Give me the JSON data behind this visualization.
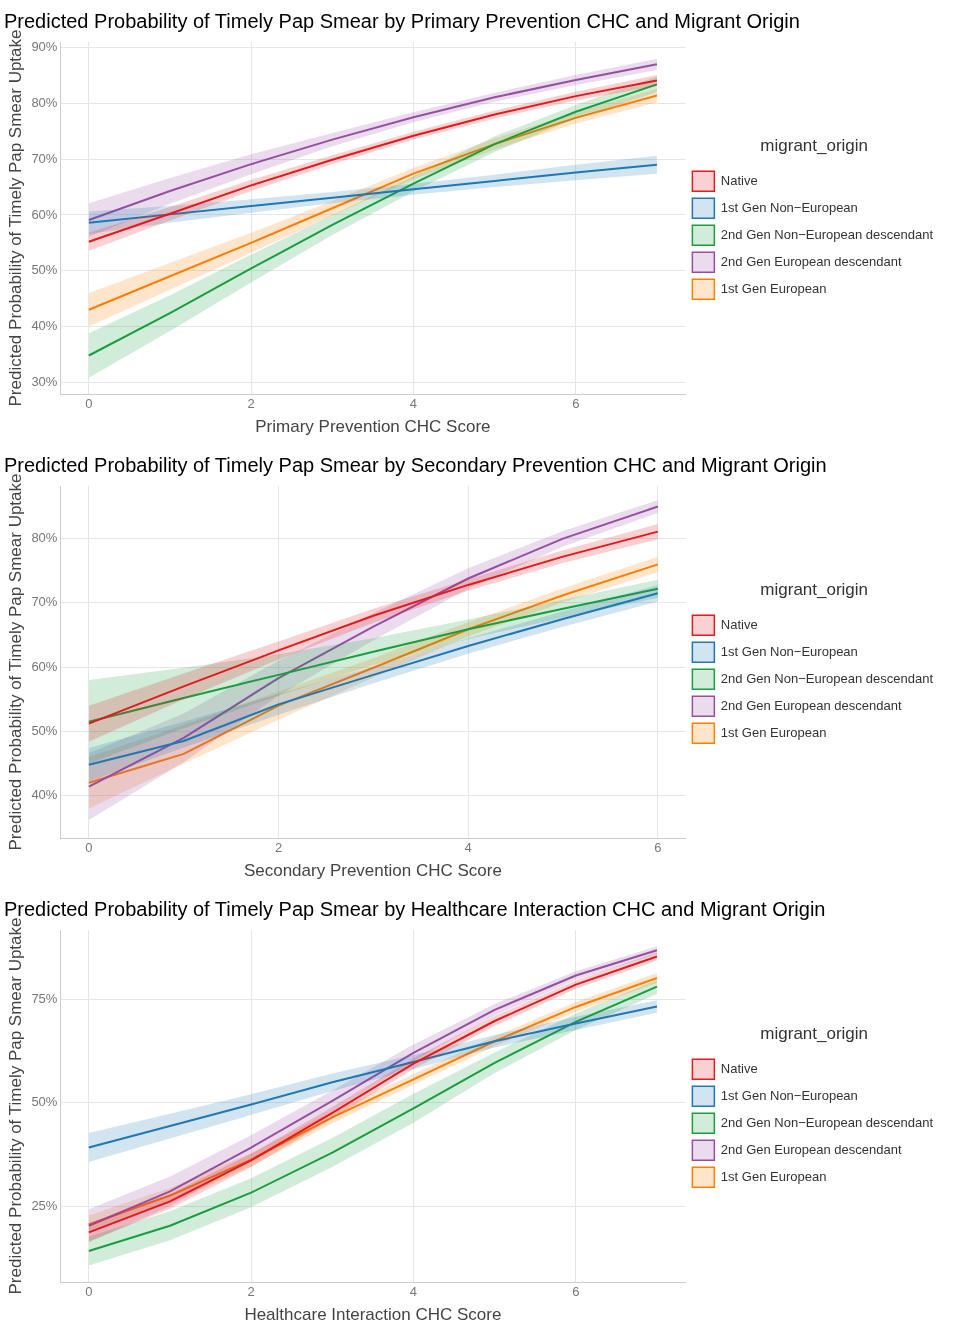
{
  "chart_data": [
    {
      "type": "line",
      "title": "Predicted Probability of Timely Pap Smear by Primary Prevention CHC and Migrant Origin",
      "xlabel": "Primary Prevention CHC Score",
      "ylabel": "Predicted Probability of Timely Pap Smear Uptake",
      "legend_title": "migrant_origin",
      "legend": "right",
      "grid": true,
      "x": [
        0,
        1,
        2,
        3,
        4,
        5,
        6,
        7
      ],
      "xlim": [
        -0.35,
        7.35
      ],
      "xticks": [
        0,
        2,
        4,
        6
      ],
      "ylim": [
        27.9,
        91
      ],
      "yticks": [
        {
          "value": 30,
          "label": "30%"
        },
        {
          "value": 40,
          "label": "40%"
        },
        {
          "value": 50,
          "label": "50%"
        },
        {
          "value": 60,
          "label": "60%"
        },
        {
          "value": 70,
          "label": "70%"
        },
        {
          "value": 80,
          "label": "80%"
        },
        {
          "value": 90,
          "label": "90%"
        }
      ],
      "series": [
        {
          "name": "Native",
          "color": "#e41a1c",
          "values": [
            55.2,
            60.2,
            65.3,
            69.9,
            74.2,
            78.0,
            81.3,
            84.1
          ],
          "lower": [
            53.6,
            59.0,
            64.3,
            69.1,
            73.5,
            77.3,
            80.5,
            83.1
          ],
          "upper": [
            56.8,
            61.4,
            66.3,
            70.7,
            74.9,
            78.7,
            82.1,
            85.1
          ]
        },
        {
          "name": "1st Gen Non−European",
          "color": "#1f78b4",
          "values": [
            58.6,
            60.1,
            61.6,
            63.1,
            64.6,
            66.1,
            67.6,
            69.0
          ],
          "lower": [
            56.6,
            58.6,
            60.4,
            62.1,
            63.6,
            65.0,
            66.2,
            67.4
          ],
          "upper": [
            60.6,
            61.6,
            62.8,
            64.1,
            65.6,
            67.2,
            69.0,
            70.6
          ]
        },
        {
          "name": "2nd Gen Non−European descendant",
          "color": "#1a9e3f",
          "values": [
            34.8,
            42.4,
            50.4,
            58.2,
            65.6,
            72.7,
            78.5,
            83.4
          ],
          "lower": [
            30.8,
            39.2,
            47.9,
            56.4,
            64.2,
            71.3,
            77.3,
            82.0
          ],
          "upper": [
            38.8,
            45.6,
            52.9,
            60.0,
            67.0,
            74.1,
            79.7,
            84.8
          ]
        },
        {
          "name": "2nd Gen European descendant",
          "color": "#984ea3",
          "values": [
            59.1,
            64.3,
            69.1,
            73.5,
            77.5,
            81.1,
            84.2,
            87.0
          ],
          "lower": [
            56.1,
            62.0,
            67.3,
            72.3,
            76.6,
            80.3,
            83.3,
            86.0
          ],
          "upper": [
            62.1,
            66.6,
            70.9,
            74.7,
            78.4,
            81.9,
            85.1,
            88.0
          ]
        },
        {
          "name": "1st Gen European",
          "color": "#ff7f00",
          "values": [
            43.0,
            49.0,
            55.0,
            61.2,
            67.4,
            72.7,
            77.4,
            81.4
          ],
          "lower": [
            40.0,
            46.6,
            53.2,
            59.9,
            66.4,
            71.7,
            76.4,
            80.2
          ],
          "upper": [
            46.0,
            51.4,
            56.8,
            62.5,
            68.4,
            73.7,
            78.4,
            82.6
          ]
        }
      ]
    },
    {
      "type": "line",
      "title": "Predicted Probability of Timely Pap Smear by Secondary Prevention CHC and Migrant Origin",
      "xlabel": "Secondary Prevention CHC Score",
      "ylabel": "Predicted Probability of Timely Pap Smear Uptake",
      "legend_title": "migrant_origin",
      "legend": "right",
      "grid": true,
      "x": [
        0,
        1,
        2,
        3,
        4,
        5,
        6
      ],
      "xlim": [
        -0.3,
        6.29
      ],
      "xticks": [
        0,
        2,
        4,
        6
      ],
      "ylim": [
        33.4,
        88.2
      ],
      "yticks": [
        {
          "value": 40,
          "label": "40%"
        },
        {
          "value": 50,
          "label": "50%"
        },
        {
          "value": 60,
          "label": "60%"
        },
        {
          "value": 70,
          "label": "70%"
        },
        {
          "value": 80,
          "label": "80%"
        }
      ],
      "series": [
        {
          "name": "Native",
          "color": "#e41a1c",
          "values": [
            51.2,
            57.0,
            62.6,
            68.0,
            72.8,
            77.2,
            81.1
          ],
          "lower": [
            48.4,
            55.0,
            61.2,
            66.9,
            71.9,
            76.2,
            79.9
          ],
          "upper": [
            54.0,
            59.0,
            64.0,
            69.1,
            73.7,
            78.2,
            82.3
          ]
        },
        {
          "name": "1st Gen Non−European",
          "color": "#1f78b4",
          "values": [
            44.8,
            48.5,
            54.2,
            58.8,
            63.3,
            67.5,
            71.5
          ],
          "lower": [
            42.2,
            47.5,
            52.6,
            57.5,
            62.1,
            66.3,
            70.2
          ],
          "upper": [
            47.4,
            51.5,
            55.8,
            60.1,
            64.5,
            68.7,
            72.8
          ]
        },
        {
          "name": "2nd Gen Non−European descendant",
          "color": "#1a9e3f",
          "values": [
            51.5,
            55.2,
            58.8,
            62.4,
            65.9,
            69.1,
            72.2
          ],
          "lower": [
            45.0,
            50.5,
            55.6,
            60.3,
            64.4,
            67.7,
            70.8
          ],
          "upper": [
            58.0,
            59.9,
            62.0,
            64.5,
            67.4,
            70.5,
            73.6
          ]
        },
        {
          "name": "2nd Gen European descendant",
          "color": "#984ea3",
          "values": [
            41.4,
            49.0,
            58.3,
            66.3,
            73.8,
            80.0,
            85.0
          ],
          "lower": [
            36.2,
            45.2,
            55.6,
            64.2,
            72.2,
            78.8,
            84.0
          ],
          "upper": [
            46.6,
            52.8,
            61.0,
            68.4,
            75.4,
            81.2,
            86.0
          ]
        },
        {
          "name": "1st Gen European",
          "color": "#ff7f00",
          "values": [
            42.0,
            46.5,
            54.0,
            59.9,
            65.9,
            71.2,
            76.0
          ],
          "lower": [
            38.0,
            45.0,
            51.8,
            58.4,
            64.8,
            70.1,
            74.8
          ],
          "upper": [
            46.0,
            51.0,
            56.2,
            61.4,
            67.0,
            72.3,
            77.2
          ]
        }
      ]
    },
    {
      "type": "line",
      "title": "Predicted Probability of Timely Pap Smear by Healthcare Interaction CHC and Migrant Origin",
      "xlabel": "Healthcare Interaction CHC Score",
      "ylabel": "Predicted Probability of Timely Pap Smear Uptake",
      "legend_title": "migrant_origin",
      "legend": "right",
      "grid": true,
      "x": [
        0,
        1,
        2,
        3,
        4,
        5,
        6,
        7
      ],
      "xlim": [
        -0.35,
        7.35
      ],
      "xticks": [
        0,
        2,
        4,
        6
      ],
      "ylim": [
        6.7,
        91.8
      ],
      "yticks": [
        {
          "value": 25,
          "label": "25%"
        },
        {
          "value": 50,
          "label": "50%"
        },
        {
          "value": 75,
          "label": "75%"
        }
      ],
      "series": [
        {
          "name": "Native",
          "color": "#e41a1c",
          "values": [
            18.7,
            26.2,
            36.1,
            47.6,
            59.5,
            69.8,
            78.6,
            85.4
          ],
          "lower": [
            16.5,
            24.4,
            34.5,
            46.2,
            58.2,
            68.6,
            77.6,
            84.4
          ],
          "upper": [
            20.9,
            28.0,
            37.7,
            49.0,
            60.8,
            71.0,
            79.6,
            86.4
          ]
        },
        {
          "name": "1st Gen Non−European",
          "color": "#1f78b4",
          "values": [
            39.2,
            44.4,
            49.6,
            55.0,
            59.9,
            64.9,
            69.2,
            73.3
          ],
          "lower": [
            35.7,
            41.4,
            47.1,
            52.9,
            58.2,
            63.4,
            67.6,
            71.8
          ],
          "upper": [
            42.7,
            47.4,
            52.1,
            57.1,
            61.6,
            66.4,
            70.8,
            74.8
          ]
        },
        {
          "name": "2nd Gen Non−European descendant",
          "color": "#1a9e3f",
          "values": [
            14.2,
            20.3,
            28.3,
            38.0,
            48.7,
            59.7,
            69.6,
            78.1
          ],
          "lower": [
            10.7,
            16.8,
            24.8,
            34.5,
            45.2,
            57.2,
            67.6,
            76.4
          ],
          "upper": [
            17.7,
            23.8,
            31.8,
            41.5,
            52.2,
            62.2,
            71.6,
            79.8
          ]
        },
        {
          "name": "2nd Gen European descendant",
          "color": "#984ea3",
          "values": [
            20.3,
            28.6,
            39.2,
            50.5,
            62.1,
            72.5,
            80.8,
            86.9
          ],
          "lower": [
            16.3,
            25.0,
            36.2,
            48.0,
            60.1,
            71.1,
            79.8,
            86.0
          ],
          "upper": [
            24.3,
            32.2,
            42.2,
            53.0,
            64.1,
            73.9,
            81.8,
            87.8
          ]
        },
        {
          "name": "1st Gen European",
          "color": "#ff7f00",
          "values": [
            20.6,
            27.6,
            36.3,
            46.5,
            55.7,
            64.9,
            73.2,
            80.2
          ],
          "lower": [
            18.4,
            25.8,
            34.7,
            45.1,
            54.4,
            63.7,
            72.0,
            79.0
          ],
          "upper": [
            22.8,
            29.4,
            37.9,
            47.9,
            57.0,
            66.1,
            74.4,
            81.4
          ]
        }
      ]
    }
  ]
}
